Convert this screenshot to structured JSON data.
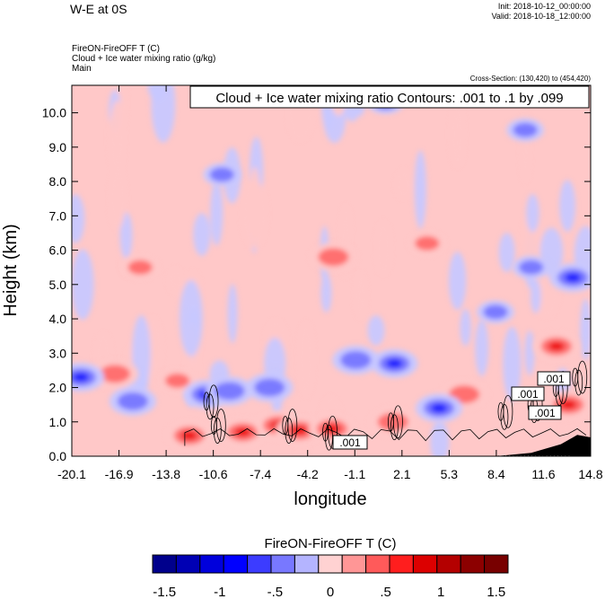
{
  "header": {
    "title": "W-E at 0S",
    "init": "Init: 2018-10-12_00:00:00",
    "valid": "Valid: 2018-10-18_12:00:00"
  },
  "subtitle": {
    "line1": "FireON-FireOFF T   (C)",
    "line2": "Cloud + Ice water mixing ratio   (g/kg)",
    "line3": "Main"
  },
  "cross_section": "Cross-Section: (130,420) to (454,420)",
  "contour_label": "Cloud + Ice water mixing ratio Contours: .001 to .1 by .099",
  "contour_value_labels": [
    ".001",
    ".001",
    ".001",
    ".001"
  ],
  "colorbar": {
    "title": "FireON-FireOFF T  (C)",
    "colors": [
      "#00008c",
      "#0000b4",
      "#0000dc",
      "#0000ff",
      "#3c3cff",
      "#7878ff",
      "#b4b4ff",
      "#ffd2d2",
      "#ff9696",
      "#ff5a5a",
      "#ff1e1e",
      "#dc0000",
      "#b40000",
      "#8c0000",
      "#780000"
    ],
    "tick_labels": [
      "-1.5",
      "-1",
      "-.5",
      "0",
      ".5",
      "1",
      "1.5"
    ]
  },
  "colors": {
    "neg_light": "#c8c8ff",
    "neg_mid": "#7a7aff",
    "neg_strong": "#1e1eff",
    "pos_light": "#ffc8c8",
    "pos_mid": "#ff7070",
    "pos_strong": "#ee1111",
    "terrain": "#000000"
  },
  "chart_data": {
    "type": "heatmap",
    "xlabel": "longitude",
    "ylabel": "Height (km)",
    "xlim": [
      -20.1,
      14.8
    ],
    "ylim": [
      0.0,
      10.8
    ],
    "x_ticks": [
      "-20.1",
      "-16.9",
      "-13.8",
      "-10.6",
      "-7.4",
      "-4.2",
      "-1.1",
      "2.1",
      "5.3",
      "8.4",
      "11.6",
      "14.8"
    ],
    "y_ticks": [
      "0.0",
      "1.0",
      "2.0",
      "3.0",
      "4.0",
      "5.0",
      "6.0",
      "7.0",
      "8.0",
      "9.0",
      "10.0"
    ],
    "variable": "FireON-FireOFF T",
    "units": "C",
    "contour_variable": "Cloud + Ice water mixing ratio",
    "contour_units": "g/kg",
    "contour_levels": [
      0.001,
      0.1
    ],
    "color_levels": [
      -1.75,
      -1.5,
      -1.25,
      -1,
      -0.75,
      -0.5,
      -0.25,
      0,
      0.25,
      0.5,
      0.75,
      1,
      1.25,
      1.5,
      1.75
    ],
    "blobs": [
      {
        "x": -17.2,
        "y": 2.4,
        "v": 1.2
      },
      {
        "x": -13.0,
        "y": 2.2,
        "v": 1.0
      },
      {
        "x": -12.2,
        "y": 0.6,
        "v": 1.4
      },
      {
        "x": -8.6,
        "y": 0.7,
        "v": 1.5
      },
      {
        "x": -6.2,
        "y": 0.9,
        "v": 1.5
      },
      {
        "x": -4.8,
        "y": 0.75,
        "v": 1.5
      },
      {
        "x": -2.6,
        "y": 0.8,
        "v": 1.3
      },
      {
        "x": -2.5,
        "y": 5.8,
        "v": 1.1
      },
      {
        "x": 1.5,
        "y": 1.0,
        "v": 1.2
      },
      {
        "x": 3.8,
        "y": 6.2,
        "v": 0.9
      },
      {
        "x": 6.3,
        "y": 1.8,
        "v": 1.2
      },
      {
        "x": 12.5,
        "y": 3.2,
        "v": 1.6
      },
      {
        "x": 13.3,
        "y": 1.5,
        "v": 1.4
      },
      {
        "x": -15.5,
        "y": 5.5,
        "v": 0.8
      },
      {
        "x": -19.5,
        "y": 2.3,
        "v": -1.4
      },
      {
        "x": -16.0,
        "y": 1.6,
        "v": -1.2
      },
      {
        "x": -11.0,
        "y": 1.8,
        "v": -1.3
      },
      {
        "x": -9.5,
        "y": 1.9,
        "v": -1.2
      },
      {
        "x": -6.8,
        "y": 2.0,
        "v": -1.1
      },
      {
        "x": -1.0,
        "y": 2.8,
        "v": -1.2
      },
      {
        "x": 1.6,
        "y": 2.7,
        "v": -1.3
      },
      {
        "x": 4.6,
        "y": 1.4,
        "v": -1.3
      },
      {
        "x": 8.4,
        "y": 4.2,
        "v": -0.9
      },
      {
        "x": 10.8,
        "y": 5.5,
        "v": -1.0
      },
      {
        "x": 13.6,
        "y": 5.2,
        "v": -1.3
      },
      {
        "x": 10.4,
        "y": 9.5,
        "v": -0.9
      },
      {
        "x": -10.0,
        "y": 8.2,
        "v": -0.6
      },
      {
        "x": 1.0,
        "y": 10.3,
        "v": -0.7
      }
    ],
    "clouds": [
      {
        "x": -10.8,
        "y": 1.6
      },
      {
        "x": -10.3,
        "y": 0.9
      },
      {
        "x": -5.5,
        "y": 0.9
      },
      {
        "x": -2.8,
        "y": 0.7
      },
      {
        "x": 1.6,
        "y": 1.0
      },
      {
        "x": 9.0,
        "y": 1.3
      },
      {
        "x": 11.0,
        "y": 1.5
      },
      {
        "x": 12.7,
        "y": 2.0
      },
      {
        "x": 14.0,
        "y": 2.3
      }
    ],
    "terrain": [
      [
        8.4,
        0.0
      ],
      [
        10.8,
        0.1
      ],
      [
        12.8,
        0.35
      ],
      [
        13.9,
        0.62
      ],
      [
        14.8,
        0.55
      ]
    ]
  }
}
